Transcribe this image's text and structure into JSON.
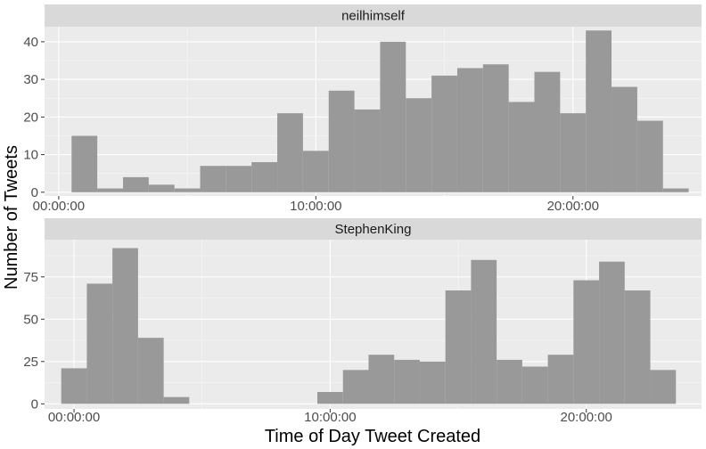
{
  "chart_data": {
    "type": "bar",
    "chart_kind": "faceted histogram",
    "xlabel": "Time of Day Tweet Created",
    "ylabel": "Number of Tweets",
    "grid": true,
    "colors": {
      "panel_bg": "#ebebeb",
      "strip_bg": "#d9d9d9",
      "grid_major": "#ffffff",
      "bar_fill": "#999999"
    },
    "panels": [
      {
        "name": "neilhimself",
        "x_ticks": [
          "00:00:00",
          "10:00:00",
          "20:00:00"
        ],
        "x_tick_hours": [
          0,
          10,
          20
        ],
        "x_range_hours": [
          -0.55,
          25.0
        ],
        "y_ticks": [
          "0",
          "10",
          "20",
          "30",
          "40"
        ],
        "y_tick_values": [
          0,
          10,
          20,
          30,
          40
        ],
        "ylim": [
          -1,
          44
        ],
        "bin_start_hours": [
          0.5,
          1.5,
          2.5,
          3.5,
          4.5,
          5.5,
          6.5,
          7.5,
          8.5,
          9.5,
          10.5,
          11.5,
          12.5,
          13.5,
          14.5,
          15.5,
          16.5,
          17.5,
          18.5,
          19.5,
          20.5,
          21.5,
          22.5,
          23.5
        ],
        "bin_width_hours": 1,
        "values": [
          15,
          1,
          4,
          2,
          1,
          7,
          7,
          8,
          21,
          11,
          27,
          22,
          40,
          25,
          31,
          33,
          34,
          24,
          32,
          21,
          43,
          28,
          19,
          1
        ]
      },
      {
        "name": "StephenKing",
        "x_ticks": [
          "00:00:00",
          "10:00:00",
          "20:00:00"
        ],
        "x_tick_hours": [
          0,
          10,
          20
        ],
        "x_range_hours": [
          -1.15,
          24.5
        ],
        "y_ticks": [
          "0",
          "25",
          "50",
          "75"
        ],
        "y_tick_values": [
          0,
          25,
          50,
          75
        ],
        "ylim": [
          -3,
          97
        ],
        "bin_start_hours": [
          -0.5,
          0.5,
          1.5,
          2.5,
          3.5,
          9.5,
          10.5,
          11.5,
          12.5,
          13.5,
          14.5,
          15.5,
          16.5,
          17.5,
          18.5,
          19.5,
          20.5,
          21.5,
          22.5
        ],
        "bin_width_hours": 1,
        "values": [
          21,
          71,
          92,
          39,
          4,
          7,
          20,
          29,
          26,
          25,
          67,
          85,
          26,
          22,
          29,
          73,
          84,
          67,
          20
        ]
      }
    ]
  }
}
